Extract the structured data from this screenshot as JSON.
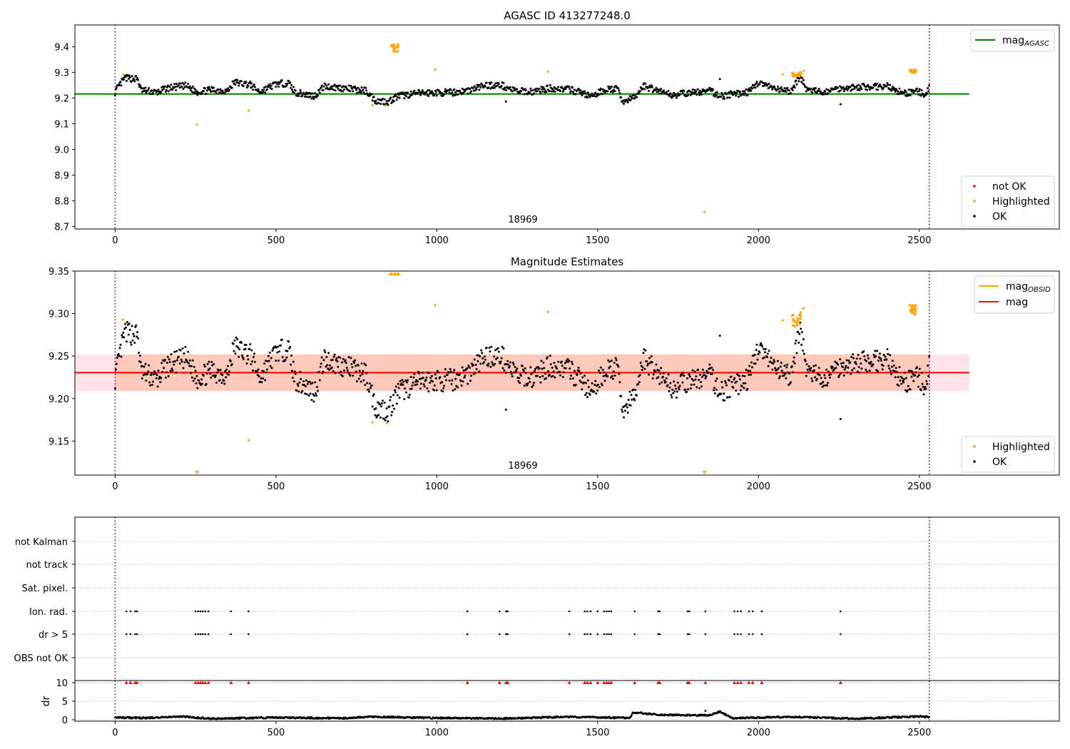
{
  "colors": {
    "ok": "#000000",
    "highlighted": "#ffa500",
    "not_ok": "#ff0000",
    "mag_agasc_line": "#008000",
    "mag_obsid_line": "#ffa500",
    "mag_line": "#ff0000",
    "band_outer": "#ffc0cb",
    "band_inner": "#ffa07a",
    "obsid_boundary": "#800080",
    "grid": "#b0b0b0"
  },
  "chart_data": [
    {
      "type": "scatter",
      "title": "AGASC ID 413277248.0",
      "xlim": [
        -125,
        2935
      ],
      "ylim": [
        8.69,
        9.485
      ],
      "xticks": [
        0,
        500,
        1000,
        1500,
        2000,
        2500
      ],
      "yticks": [
        8.7,
        8.8,
        8.9,
        9.0,
        9.1,
        9.2,
        9.3,
        9.4
      ],
      "ytick_labels": [
        "8.7",
        "8.8",
        "8.9",
        "9.0",
        "9.1",
        "9.2",
        "9.3",
        "9.4"
      ],
      "obsid_label": "18969",
      "obsid_boundaries": [
        0,
        2531
      ],
      "hline": {
        "label": "mag",
        "label_sub": "AGASC",
        "y": 9.216,
        "x_range": [
          -125,
          2655
        ]
      },
      "legend_lines": [
        {
          "label": "mag",
          "sub": "AGASC",
          "color": "#008000"
        }
      ],
      "legend_points": [
        {
          "label": "not OK",
          "color": "#ff0000"
        },
        {
          "label": "Highlighted",
          "color": "#ffa500"
        },
        {
          "label": "OK",
          "color": "#000000"
        }
      ],
      "series": [
        {
          "name": "OK",
          "trend": [
            [
              0,
              9.225
            ],
            [
              30,
              9.278
            ],
            [
              70,
              9.275
            ],
            [
              80,
              9.232
            ],
            [
              130,
              9.222
            ],
            [
              160,
              9.238
            ],
            [
              220,
              9.248
            ],
            [
              255,
              9.224
            ],
            [
              300,
              9.232
            ],
            [
              350,
              9.228
            ],
            [
              370,
              9.262
            ],
            [
              420,
              9.252
            ],
            [
              450,
              9.224
            ],
            [
              500,
              9.255
            ],
            [
              540,
              9.258
            ],
            [
              560,
              9.222
            ],
            [
              620,
              9.208
            ],
            [
              650,
              9.246
            ],
            [
              700,
              9.24
            ],
            [
              780,
              9.228
            ],
            [
              810,
              9.19
            ],
            [
              850,
              9.186
            ],
            [
              880,
              9.208
            ],
            [
              950,
              9.22
            ],
            [
              1050,
              9.222
            ],
            [
              1100,
              9.23
            ],
            [
              1150,
              9.25
            ],
            [
              1200,
              9.25
            ],
            [
              1250,
              9.226
            ],
            [
              1300,
              9.226
            ],
            [
              1350,
              9.238
            ],
            [
              1400,
              9.236
            ],
            [
              1450,
              9.222
            ],
            [
              1480,
              9.204
            ],
            [
              1520,
              9.232
            ],
            [
              1560,
              9.236
            ],
            [
              1580,
              9.186
            ],
            [
              1620,
              9.206
            ],
            [
              1640,
              9.248
            ],
            [
              1700,
              9.226
            ],
            [
              1730,
              9.212
            ],
            [
              1800,
              9.222
            ],
            [
              1850,
              9.228
            ],
            [
              1880,
              9.208
            ],
            [
              1930,
              9.216
            ],
            [
              1970,
              9.224
            ],
            [
              2000,
              9.262
            ],
            [
              2050,
              9.234
            ],
            [
              2100,
              9.226
            ],
            [
              2130,
              9.286
            ],
            [
              2150,
              9.232
            ],
            [
              2200,
              9.222
            ],
            [
              2250,
              9.238
            ],
            [
              2300,
              9.242
            ],
            [
              2400,
              9.246
            ],
            [
              2450,
              9.218
            ],
            [
              2500,
              9.226
            ],
            [
              2520,
              9.204
            ],
            [
              2531,
              9.244
            ]
          ]
        },
        {
          "name": "Highlighted",
          "points": [
            [
              25,
              9.292
            ],
            [
              255,
              9.097
            ],
            [
              415,
              9.151
            ],
            [
              800,
              9.172
            ],
            [
              840,
              9.17
            ],
            [
              995,
              9.311
            ],
            [
              1345,
              9.303
            ],
            [
              1832,
              8.756
            ],
            [
              2075,
              9.292
            ],
            [
              2140,
              9.306
            ]
          ],
          "clusters": [
            {
              "x": [
                858,
                882
              ],
              "y": [
                9.378,
                9.412
              ]
            },
            {
              "x": [
                2104,
                2132
              ],
              "y": [
                9.285,
                9.302
              ]
            },
            {
              "x": [
                2470,
                2490
              ],
              "y": [
                9.298,
                9.31
              ]
            }
          ]
        }
      ]
    },
    {
      "type": "scatter",
      "title": "Magnitude Estimates",
      "xlim": [
        -125,
        2935
      ],
      "ylim": [
        9.11,
        9.35
      ],
      "xticks": [
        0,
        500,
        1000,
        1500,
        2000,
        2500
      ],
      "yticks": [
        9.15,
        9.2,
        9.25,
        9.3,
        9.35
      ],
      "ytick_labels": [
        "9.15",
        "9.20",
        "9.25",
        "9.30",
        "9.35"
      ],
      "obsid_label": "18969",
      "obsid_boundaries": [
        0,
        2531
      ],
      "mag_obsid": 9.2305,
      "mag": 9.2305,
      "band_outer": [
        9.209,
        9.252
      ],
      "band_inner": [
        9.209,
        9.252
      ],
      "legend_lines": [
        {
          "label": "mag",
          "sub": "OBSID",
          "color": "#ffa500"
        },
        {
          "label": "mag",
          "sub": "",
          "color": "#ff0000"
        }
      ],
      "legend_points": [
        {
          "label": "Highlighted",
          "color": "#ffa500"
        },
        {
          "label": "OK",
          "color": "#000000"
        }
      ],
      "highlighted_points": [
        [
          25,
          9.293
        ],
        [
          415,
          9.151
        ],
        [
          800,
          9.172
        ],
        [
          845,
          9.171
        ],
        [
          995,
          9.31
        ],
        [
          1345,
          9.302
        ],
        [
          2075,
          9.292
        ],
        [
          2140,
          9.306
        ]
      ],
      "highlighted_off_scale": [
        {
          "x": 255,
          "edge": "bottom"
        },
        {
          "x": 1832,
          "edge": "bottom"
        },
        {
          "x": 858,
          "edge": "top"
        },
        {
          "x": 870,
          "edge": "top"
        },
        {
          "x": 880,
          "edge": "top"
        }
      ]
    },
    {
      "type": "scatter",
      "title": "",
      "xlim": [
        -125,
        2935
      ],
      "xticks": [
        0,
        500,
        1000,
        1500,
        2000,
        2500
      ],
      "flag_rows": [
        "not Kalman",
        "not track",
        "Sat. pixel.",
        "Ion. rad.",
        "dr > 5",
        "OBS not OK"
      ],
      "flag_x": [
        35,
        48,
        62,
        68,
        250,
        258,
        265,
        272,
        280,
        290,
        360,
        415,
        1095,
        1195,
        1215,
        1220,
        1412,
        1460,
        1468,
        1478,
        1500,
        1520,
        1528,
        1535,
        1542,
        1615,
        1688,
        1693,
        1780,
        1785,
        1835,
        1925,
        1935,
        1945,
        1970,
        1982,
        2010,
        2255
      ],
      "dr_ylabel": "dr",
      "dr_ylim": [
        -1,
        11
      ],
      "dr_yticks": [
        0,
        5,
        10
      ],
      "dr_ytick_labels": [
        "0",
        "5",
        "10"
      ],
      "dr_trend": [
        [
          0,
          0.6
        ],
        [
          100,
          0.5
        ],
        [
          200,
          0.9
        ],
        [
          300,
          0.3
        ],
        [
          500,
          0.6
        ],
        [
          700,
          0.4
        ],
        [
          800,
          0.8
        ],
        [
          1000,
          0.5
        ],
        [
          1200,
          0.3
        ],
        [
          1400,
          0.8
        ],
        [
          1600,
          0.5
        ],
        [
          1610,
          2.0
        ],
        [
          1700,
          1.3
        ],
        [
          1850,
          1.2
        ],
        [
          1880,
          2.2
        ],
        [
          1920,
          0.4
        ],
        [
          2100,
          0.8
        ],
        [
          2300,
          0.3
        ],
        [
          2500,
          0.9
        ],
        [
          2531,
          0.7
        ]
      ],
      "dr_outlier": [
        1835,
        2.4
      ]
    }
  ]
}
